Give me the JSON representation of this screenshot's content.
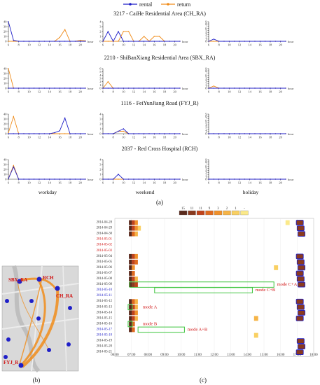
{
  "legend": {
    "rental_label": "rental",
    "return_label": "return",
    "rental_color": "#1f1fc8",
    "return_color": "#f08c1a"
  },
  "panel_a": {
    "sub_label": "(a)",
    "hour_label": "hour",
    "column_labels": [
      "workday",
      "weekend",
      "holiday"
    ],
    "x_ticks": [
      6,
      8,
      10,
      12,
      14,
      16,
      18,
      20
    ]
  },
  "chart_data": [
    {
      "type": "line",
      "title": "3217 - CaiHe Residential Area (CH_RA)",
      "x": [
        6,
        7,
        8,
        9,
        10,
        11,
        12,
        13,
        14,
        15,
        16,
        17,
        18,
        19,
        20,
        21
      ],
      "panels": [
        {
          "column": "workday",
          "y_ticks": [
            0,
            10,
            20,
            30,
            40
          ],
          "ylim": [
            0,
            40
          ],
          "series": [
            {
              "name": "rental",
              "values": [
                40,
                2,
                0,
                0,
                0,
                0,
                0,
                0,
                0,
                0,
                0,
                0,
                0,
                0,
                0,
                0
              ]
            },
            {
              "name": "return",
              "values": [
                0,
                0,
                0,
                0,
                0,
                0,
                0,
                0,
                0,
                0,
                8,
                24,
                0,
                0,
                2,
                1
              ]
            }
          ]
        },
        {
          "column": "weekend",
          "y_ticks": [
            0,
            1,
            2,
            3,
            4
          ],
          "ylim": [
            0,
            4
          ],
          "series": [
            {
              "name": "rental",
              "values": [
                0,
                2,
                0,
                2,
                0,
                0,
                0,
                0,
                0,
                0,
                0,
                0,
                0,
                0,
                0,
                0
              ]
            },
            {
              "name": "return",
              "values": [
                0,
                0,
                0,
                0,
                2,
                2,
                0,
                0,
                1,
                0,
                1,
                1,
                0,
                0,
                0,
                0
              ]
            }
          ]
        },
        {
          "column": "holiday",
          "y_ticks": [
            0,
            1,
            2,
            3,
            4,
            5,
            6,
            7,
            8,
            9
          ],
          "ylim": [
            0,
            9
          ],
          "series": [
            {
              "name": "rental",
              "values": [
                0,
                1,
                0,
                0,
                0,
                0,
                0,
                0,
                0,
                0,
                0,
                0,
                0,
                0,
                0,
                0
              ]
            },
            {
              "name": "return",
              "values": [
                0,
                0,
                0,
                0,
                0,
                0,
                0,
                0,
                0,
                0,
                0,
                0,
                0,
                0,
                0,
                0
              ]
            }
          ]
        }
      ]
    },
    {
      "type": "line",
      "title": "2210 - ShiBanXiang Residential Area (SBX_RA)",
      "x": [
        6,
        7,
        8,
        9,
        10,
        11,
        12,
        13,
        14,
        15,
        16,
        17,
        18,
        19,
        20,
        21
      ],
      "panels": [
        {
          "column": "workday",
          "y_ticks": [
            0,
            10,
            20,
            30,
            40
          ],
          "ylim": [
            0,
            40
          ],
          "series": [
            {
              "name": "rental",
              "values": [
                0,
                0,
                0,
                0,
                0,
                0,
                0,
                0,
                0,
                0,
                0,
                0,
                0,
                0,
                0,
                0
              ]
            },
            {
              "name": "return",
              "values": [
                40,
                0,
                0,
                0,
                0,
                0,
                0,
                0,
                0,
                0,
                0,
                0,
                0,
                0,
                0,
                0
              ]
            }
          ]
        },
        {
          "column": "weekend",
          "y_ticks": [
            0,
            1,
            2,
            3,
            4,
            5,
            6
          ],
          "ylim": [
            0,
            6
          ],
          "series": [
            {
              "name": "rental",
              "values": [
                0,
                0,
                0,
                0,
                0,
                0,
                0,
                0,
                0,
                0,
                0,
                0,
                0,
                0,
                0,
                0
              ]
            },
            {
              "name": "return",
              "values": [
                0,
                2,
                0,
                0,
                0,
                0,
                0,
                0,
                0,
                0,
                0,
                0,
                0,
                0,
                0,
                0
              ]
            }
          ]
        },
        {
          "column": "holiday",
          "y_ticks": [
            0,
            1,
            2,
            3,
            4,
            5,
            6,
            7,
            8,
            9
          ],
          "ylim": [
            0,
            9
          ],
          "series": [
            {
              "name": "rental",
              "values": [
                0,
                0,
                0,
                0,
                0,
                0,
                0,
                0,
                0,
                0,
                0,
                0,
                0,
                0,
                0,
                0
              ]
            },
            {
              "name": "return",
              "values": [
                0,
                1,
                0,
                0,
                0,
                0,
                0,
                0,
                0,
                0,
                0,
                0,
                0,
                0,
                0,
                0
              ]
            }
          ]
        }
      ]
    },
    {
      "type": "line",
      "title": "1116 - FeiYunJiang Road (FYJ_R)",
      "x": [
        6,
        7,
        8,
        9,
        10,
        11,
        12,
        13,
        14,
        15,
        16,
        17,
        18,
        19,
        20,
        21
      ],
      "panels": [
        {
          "column": "workday",
          "y_ticks": [
            0,
            10,
            20,
            30,
            40
          ],
          "ylim": [
            0,
            40
          ],
          "series": [
            {
              "name": "rental",
              "values": [
                0,
                0,
                0,
                0,
                0,
                0,
                0,
                0,
                0,
                2,
                6,
                32,
                0,
                0,
                0,
                0
              ]
            },
            {
              "name": "return",
              "values": [
                2,
                35,
                0,
                0,
                0,
                0,
                0,
                0,
                0,
                0,
                0,
                0,
                0,
                0,
                0,
                0
              ]
            }
          ]
        },
        {
          "column": "weekend",
          "y_ticks": [
            0,
            1,
            2,
            3,
            4
          ],
          "ylim": [
            0,
            4
          ],
          "series": [
            {
              "name": "rental",
              "values": [
                0,
                0,
                0,
                0.5,
                1,
                0,
                0,
                0,
                0,
                0,
                0,
                0,
                0,
                0,
                0,
                0
              ]
            },
            {
              "name": "return",
              "values": [
                0,
                0,
                0,
                0.5,
                0.5,
                0,
                0,
                0,
                0,
                0,
                0,
                0,
                0,
                0,
                0,
                0
              ]
            }
          ]
        },
        {
          "column": "holiday",
          "y_ticks": [
            0,
            1,
            2,
            3,
            4,
            5,
            6,
            7,
            8,
            9
          ],
          "ylim": [
            0,
            9
          ],
          "series": [
            {
              "name": "rental",
              "values": [
                0,
                0,
                0,
                0,
                0,
                0,
                0,
                0,
                0,
                0,
                0,
                0,
                0,
                0,
                0,
                0
              ]
            },
            {
              "name": "return",
              "values": [
                0,
                0,
                0,
                0,
                0,
                0,
                0,
                0,
                0,
                0,
                0,
                0,
                0,
                0,
                0,
                0
              ]
            }
          ]
        }
      ]
    },
    {
      "type": "line",
      "title": "2037 - Red Cross Hospital (RCH)",
      "x": [
        6,
        7,
        8,
        9,
        10,
        11,
        12,
        13,
        14,
        15,
        16,
        17,
        18,
        19,
        20,
        21
      ],
      "panels": [
        {
          "column": "workday",
          "y_ticks": [
            0,
            10,
            20,
            30,
            40
          ],
          "ylim": [
            0,
            40
          ],
          "series": [
            {
              "name": "rental",
              "values": [
                1,
                25,
                0,
                0,
                0,
                0,
                0,
                0,
                0,
                0,
                0,
                0,
                0,
                0,
                0,
                0
              ]
            },
            {
              "name": "return",
              "values": [
                1,
                28,
                0,
                0,
                0,
                0,
                0,
                0,
                0,
                0,
                0,
                0,
                0,
                0,
                0,
                0
              ]
            }
          ]
        },
        {
          "column": "weekend",
          "y_ticks": [
            0,
            1,
            2,
            3,
            4
          ],
          "ylim": [
            0,
            4
          ],
          "series": [
            {
              "name": "rental",
              "values": [
                0,
                0,
                0,
                1,
                0,
                0,
                0,
                0,
                0,
                0,
                0,
                0,
                0,
                0,
                0,
                0
              ]
            },
            {
              "name": "return",
              "values": [
                0,
                0,
                0,
                0,
                0,
                0,
                0,
                0,
                0,
                0,
                0,
                0,
                0,
                0,
                0,
                0
              ]
            }
          ]
        },
        {
          "column": "holiday",
          "y_ticks": [
            0,
            1,
            2,
            3,
            4,
            5,
            6,
            7,
            8,
            9
          ],
          "ylim": [
            0,
            9
          ],
          "series": [
            {
              "name": "rental",
              "values": [
                0,
                0,
                0,
                0,
                0,
                0,
                0,
                0,
                0,
                0,
                0,
                0,
                0,
                0,
                0,
                0
              ]
            },
            {
              "name": "return",
              "values": [
                0,
                0,
                0,
                0,
                0,
                0,
                0,
                0,
                0,
                0,
                0,
                0,
                0,
                0,
                0,
                0
              ]
            }
          ]
        }
      ]
    }
  ],
  "panel_b": {
    "sub_label": "(b)",
    "station_labels": [
      "SBX_RA",
      "RCH",
      "CH_RA",
      "FYJ_R"
    ]
  },
  "panel_c": {
    "sub_label": "(c)",
    "color_legend": [
      {
        "label": "15",
        "color": "#5a2a1c"
      },
      {
        "label": "11",
        "color": "#8a3a1e"
      },
      {
        "label": "11",
        "color": "#c0431b"
      },
      {
        "label": "9",
        "color": "#e06a1e"
      },
      {
        "label": "3",
        "color": "#f0902a"
      },
      {
        "label": "2",
        "color": "#f6b447"
      },
      {
        "label": "1",
        "color": "#f9d063"
      },
      {
        "label": "-",
        "color": "#fbe98a"
      }
    ],
    "x_ticks": [
      "06:00",
      "07:00",
      "08:00",
      "09:00",
      "10:00",
      "11:00",
      "12:00",
      "13:00",
      "14:00",
      "15:00",
      "16:00",
      "17:00",
      "18:00"
    ],
    "dates": [
      {
        "label": "2014-04-28",
        "color": "#333333"
      },
      {
        "label": "2014-04-29",
        "color": "#333333"
      },
      {
        "label": "2014-04-30",
        "color": "#333333"
      },
      {
        "label": "2014-05-01",
        "color": "#d01010"
      },
      {
        "label": "2014-05-02",
        "color": "#d01010"
      },
      {
        "label": "2014-05-03",
        "color": "#d01010"
      },
      {
        "label": "2014-05-04",
        "color": "#333333"
      },
      {
        "label": "2014-05-05",
        "color": "#333333"
      },
      {
        "label": "2014-05-06",
        "color": "#333333"
      },
      {
        "label": "2014-05-07",
        "color": "#333333"
      },
      {
        "label": "2014-05-08",
        "color": "#333333"
      },
      {
        "label": "2014-05-09",
        "color": "#333333"
      },
      {
        "label": "2014-05-10",
        "color": "#1f1fc8"
      },
      {
        "label": "2014-05-11",
        "color": "#1f1fc8"
      },
      {
        "label": "2014-05-12",
        "color": "#333333"
      },
      {
        "label": "2014-05-13",
        "color": "#333333"
      },
      {
        "label": "2014-05-14",
        "color": "#333333"
      },
      {
        "label": "2014-05-15",
        "color": "#333333"
      },
      {
        "label": "2014-05-16",
        "color": "#333333"
      },
      {
        "label": "2014-05-17",
        "color": "#1f1fc8"
      },
      {
        "label": "2014-05-18",
        "color": "#1f1fc8"
      },
      {
        "label": "2014-05-19",
        "color": "#333333"
      },
      {
        "label": "2014-05-20",
        "color": "#333333"
      },
      {
        "label": "2014-05-21",
        "color": "#333333"
      }
    ],
    "annotations": [
      "mode C+A",
      "mode C+B",
      "mode A",
      "mode B",
      "mode A+B"
    ]
  }
}
